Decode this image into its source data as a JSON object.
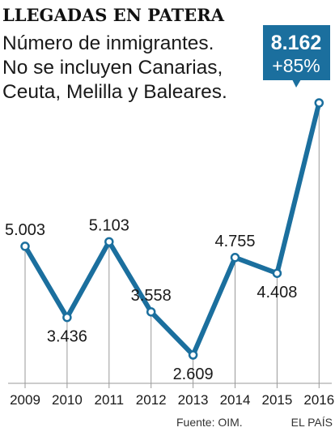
{
  "chart_data": {
    "type": "line",
    "title": "LLEGADAS EN PATERA",
    "subtitle_lines": [
      "Número de inmigrantes.",
      "No se incluyen Canarias,",
      "Ceuta, Melilla y Baleares."
    ],
    "categories": [
      "2009",
      "2010",
      "2011",
      "2012",
      "2013",
      "2014",
      "2015",
      "2016"
    ],
    "values": [
      5003,
      3436,
      5103,
      3558,
      2609,
      4755,
      4408,
      8162
    ],
    "value_labels": [
      "5.003",
      "3.436",
      "5.103",
      "3.558",
      "2.609",
      "4.755",
      "4.408",
      "8.162"
    ],
    "label_side": [
      "above",
      "below",
      "above",
      "above",
      "below",
      "above",
      "below",
      "above"
    ],
    "highlight": {
      "value": "8.162",
      "change": "+85%"
    },
    "xlabel": "",
    "ylabel": "",
    "grid": false,
    "colors": {
      "line": "#1b6f9e",
      "marker_fill": "#ffffff",
      "highlight_box": "#1b6f9e",
      "drop_lines": "#999999"
    }
  },
  "footer": {
    "source": "Fuente: OIM.",
    "credit": "EL PAÍS"
  }
}
